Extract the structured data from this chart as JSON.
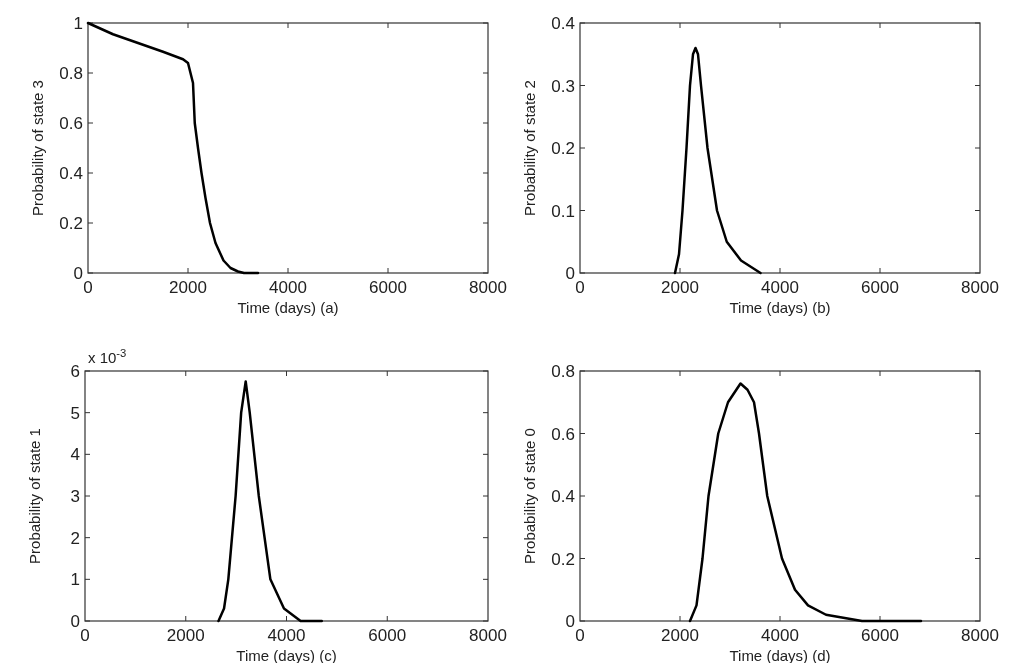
{
  "chart_data": [
    {
      "type": "line",
      "xlabel": "Time (days) (a)",
      "ylabel": "Probability of state 3",
      "xlim": [
        0,
        8000
      ],
      "xticks": [
        0,
        2000,
        4000,
        6000,
        8000
      ],
      "ylim": [
        0,
        1
      ],
      "yticks": [
        0,
        0.2,
        0.4,
        0.6,
        0.8,
        1
      ],
      "series": [
        {
          "color": "#000000",
          "x": [
            0,
            500,
            1000,
            1500,
            1900,
            2000,
            2100,
            2135,
            2200,
            2270,
            2350,
            2440,
            2550,
            2710,
            2850,
            3000,
            3120,
            3400
          ],
          "values": [
            1,
            0.955,
            0.92,
            0.885,
            0.855,
            0.84,
            0.76,
            0.6,
            0.5,
            0.4,
            0.3,
            0.2,
            0.12,
            0.05,
            0.02,
            0.006,
            0,
            0
          ]
        }
      ]
    },
    {
      "type": "line",
      "xlabel": "Time (days) (b)",
      "ylabel": "Probability of state 2",
      "xlim": [
        0,
        8000
      ],
      "xticks": [
        0,
        2000,
        4000,
        6000,
        8000
      ],
      "ylim": [
        0,
        0.4
      ],
      "yticks": [
        0,
        0.1,
        0.2,
        0.3,
        0.4
      ],
      "series": [
        {
          "color": "#000000",
          "x": [
            1900,
            1980,
            2050,
            2130,
            2200,
            2260,
            2310,
            2360,
            2420,
            2550,
            2740,
            2935,
            3220,
            3610
          ],
          "values": [
            0,
            0.03,
            0.1,
            0.2,
            0.3,
            0.35,
            0.36,
            0.35,
            0.3,
            0.2,
            0.1,
            0.05,
            0.02,
            0
          ]
        }
      ]
    },
    {
      "type": "line",
      "xlabel": "Time (days) (c)",
      "ylabel": "Probability of state 1",
      "annotations": [
        "x 10$^{-3}$"
      ],
      "xlim": [
        0,
        8000
      ],
      "xticks": [
        0,
        2000,
        4000,
        6000,
        8000
      ],
      "ylim": [
        0,
        6
      ],
      "yticks": [
        0,
        1,
        2,
        3,
        4,
        5,
        6
      ],
      "series": [
        {
          "color": "#000000",
          "x": [
            2650,
            2760,
            2845,
            2990,
            3100,
            3190,
            3270,
            3450,
            3680,
            3950,
            4280,
            4700
          ],
          "values": [
            0,
            0.3,
            1,
            3,
            5,
            5.75,
            5,
            3,
            1,
            0.3,
            0,
            0
          ]
        }
      ]
    },
    {
      "type": "line",
      "xlabel": "Time (days) (d)",
      "ylabel": "Probability of state 0",
      "xlim": [
        0,
        8000
      ],
      "xticks": [
        0,
        2000,
        4000,
        6000,
        8000
      ],
      "ylim": [
        0,
        0.8
      ],
      "yticks": [
        0,
        0.2,
        0.4,
        0.6,
        0.8
      ],
      "series": [
        {
          "color": "#000000",
          "x": [
            2200,
            2330,
            2450,
            2570,
            2765,
            2960,
            3210,
            3350,
            3480,
            3580,
            3745,
            4040,
            4300,
            4560,
            4920,
            5640,
            6820
          ],
          "values": [
            0,
            0.05,
            0.2,
            0.4,
            0.6,
            0.7,
            0.76,
            0.74,
            0.7,
            0.6,
            0.4,
            0.2,
            0.1,
            0.05,
            0.02,
            0,
            0
          ]
        }
      ]
    }
  ]
}
